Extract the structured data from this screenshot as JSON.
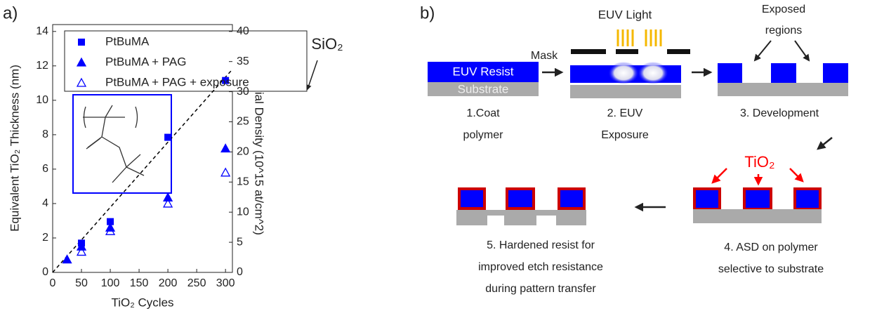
{
  "chart_data": {
    "type": "scatter",
    "panel_label": "a)",
    "xlabel": "TiO₂ Cycles",
    "ylabel": "Equivalent TiO₂ Thickness (nm)",
    "y2label": "Ti Aerial Density (10^15 at/cm^2)",
    "xlim": [
      0,
      312
    ],
    "xticks": [
      0,
      50,
      100,
      150,
      200,
      250,
      300
    ],
    "ylim": [
      0,
      14.4
    ],
    "yticks": [
      0,
      2,
      4,
      6,
      8,
      10,
      12,
      14
    ],
    "y2lim": [
      0,
      41.14
    ],
    "y2ticks": [
      0,
      5,
      10,
      15,
      20,
      25,
      30,
      35,
      40
    ],
    "series": [
      {
        "name": "PtBuMA",
        "color": "#0000ff",
        "marker": "square",
        "x": [
          50,
          100,
          200,
          300
        ],
        "values": [
          1.7,
          2.95,
          7.85,
          11.15
        ]
      },
      {
        "name": "PtBuMA + PAG",
        "color": "#0000ff",
        "marker": "triangle",
        "x": [
          25,
          50,
          100,
          200,
          300
        ],
        "values": [
          0.75,
          1.5,
          2.6,
          4.35,
          7.2
        ]
      },
      {
        "name": "PtBuMA + PAG + exposure",
        "color": "#0000ff",
        "marker": "triangle-open",
        "x": [
          50,
          100,
          200,
          300
        ],
        "values": [
          1.2,
          2.4,
          4.0,
          5.8
        ]
      }
    ],
    "reference_line": {
      "x": [
        0,
        312
      ],
      "values": [
        0,
        11.8
      ],
      "color": "#000000"
    },
    "annotation": "SiO₂"
  },
  "diagram": {
    "panel_label": "b)",
    "euv_light": "EUV Light",
    "mask": "Mask",
    "exposed": [
      "Exposed",
      "regions"
    ],
    "resist": "EUV Resist",
    "substrate": "Substrate",
    "tio2": "TiO₂",
    "steps": [
      [
        "1.Coat",
        "polymer"
      ],
      [
        "2. EUV",
        "Exposure"
      ],
      [
        "3. Development"
      ],
      [
        "4. ASD on polymer",
        "selective to substrate"
      ],
      [
        "5. Hardened resist for",
        "improved etch resistance",
        "during pattern transfer"
      ]
    ]
  }
}
